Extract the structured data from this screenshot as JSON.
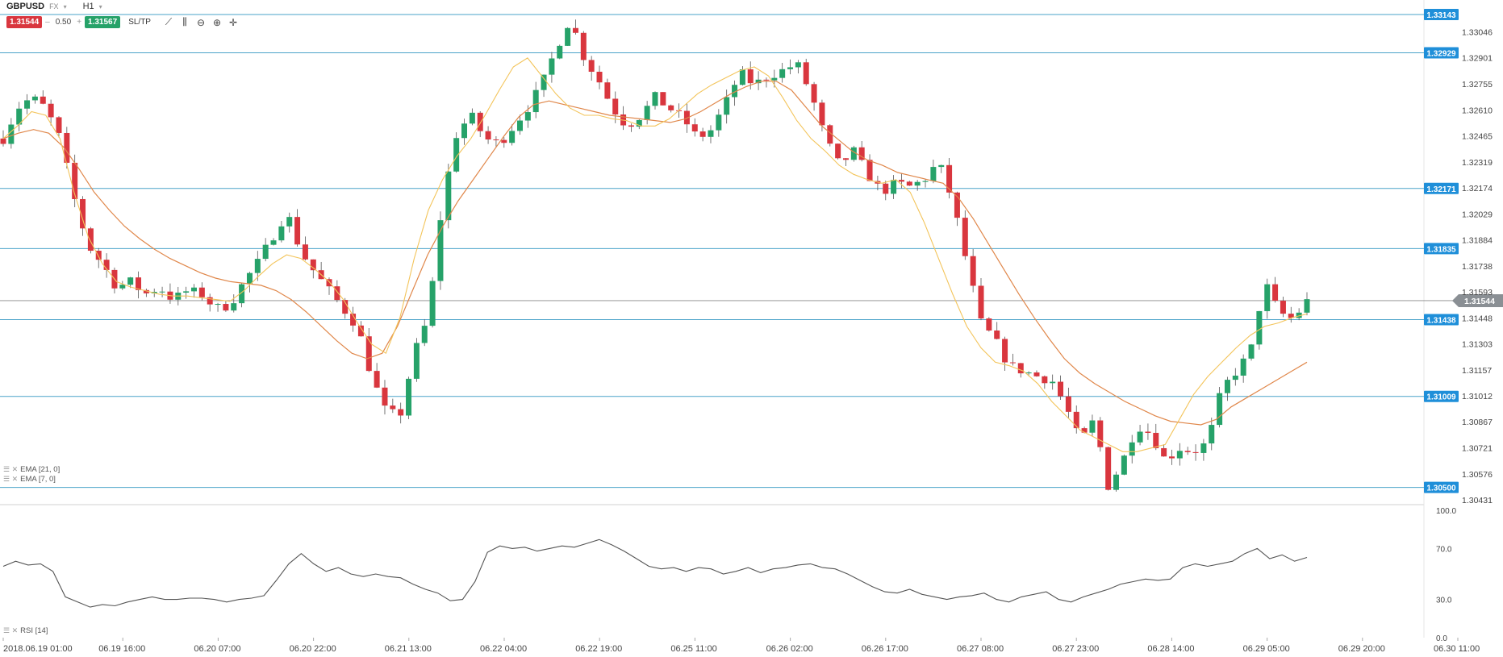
{
  "toolbar": {
    "symbol": "GBPUSD",
    "market": "FX",
    "timeframe": "H1",
    "sell_price": "1.31544",
    "buy_price": "1.31567",
    "lot_minus": "–",
    "lot_size": "0.50",
    "lot_plus": "+",
    "sltp_label": "SL/TP",
    "tools": [
      "line-tool-icon",
      "bars-tool-icon",
      "zoom-out-icon",
      "zoom-in-icon",
      "crosshair-icon"
    ]
  },
  "indicators": {
    "ema21_label": "EMA [21, 0]",
    "ema7_label": "EMA [7, 0]",
    "rsi_label": "RSI [14]"
  },
  "colors": {
    "bull": "#26a269",
    "bear": "#d9363e",
    "ema21": "#e0874a",
    "ema7": "#f3c45a",
    "hline": "#4aa3c9",
    "hline_label": "#1f8fd9",
    "rsi": "#555555"
  },
  "chart_data": [
    {
      "type": "candlestick",
      "instrument": "GBPUSD",
      "timeframe": "H1",
      "y_axis": {
        "side": "right",
        "ylim": [
          1.30431,
          1.33143
        ],
        "ticks": [
          "1.33046",
          "1.32901",
          "1.32755",
          "1.32610",
          "1.32465",
          "1.32319",
          "1.32174",
          "1.32029",
          "1.31884",
          "1.31738",
          "1.31593",
          "1.31448",
          "1.31303",
          "1.31157",
          "1.31012",
          "1.30867",
          "1.30721",
          "1.30576",
          "1.30431"
        ]
      },
      "x_axis": {
        "labels": [
          "2018.06.19 01:00",
          "06.19 16:00",
          "06.20 07:00",
          "06.20 22:00",
          "06.21 13:00",
          "06.22 04:00",
          "06.22 19:00",
          "06.25 11:00",
          "06.26 02:00",
          "06.26 17:00",
          "06.27 08:00",
          "06.27 23:00",
          "06.28 14:00",
          "06.29 05:00",
          "06.29 20:00",
          "06.30 11:00"
        ]
      },
      "horizontal_lines": [
        {
          "price": "1.33143"
        },
        {
          "price": "1.32929"
        },
        {
          "price": "1.32171"
        },
        {
          "price": "1.31835"
        },
        {
          "price": "1.31438"
        },
        {
          "price": "1.31009"
        },
        {
          "price": "1.30500"
        }
      ],
      "current_price": "1.31544",
      "close_path": [
        1.3245,
        1.3262,
        1.3268,
        1.3262,
        1.3245,
        1.3212,
        1.3185,
        1.3175,
        1.3162,
        1.3165,
        1.3158,
        1.3162,
        1.3155,
        1.316,
        1.3158,
        1.315,
        1.3152,
        1.3165,
        1.3176,
        1.319,
        1.3204,
        1.3182,
        1.317,
        1.316,
        1.315,
        1.314,
        1.3112,
        1.3092,
        1.309,
        1.3125,
        1.3145,
        1.321,
        1.3248,
        1.3258,
        1.3245,
        1.3242,
        1.3252,
        1.3262,
        1.3275,
        1.3295,
        1.3312,
        1.329,
        1.3278,
        1.3262,
        1.3252,
        1.3258,
        1.3268,
        1.3262,
        1.3256,
        1.3245,
        1.325,
        1.3265,
        1.3282,
        1.3275,
        1.328,
        1.3283,
        1.3287,
        1.327,
        1.3245,
        1.323,
        1.3238,
        1.3225,
        1.3215,
        1.322,
        1.3218,
        1.3222,
        1.3232,
        1.321,
        1.3175,
        1.3142,
        1.3132,
        1.3118,
        1.3115,
        1.3112,
        1.311,
        1.3095,
        1.3075,
        1.3088,
        1.305,
        1.3065,
        1.3085,
        1.308,
        1.3065,
        1.3072,
        1.307,
        1.3075,
        1.3105,
        1.3115,
        1.3125,
        1.3165,
        1.3148,
        1.3144,
        1.3154
      ],
      "ema7": [
        1.3245,
        1.3252,
        1.326,
        1.3258,
        1.3245,
        1.3215,
        1.319,
        1.3175,
        1.3165,
        1.3162,
        1.316,
        1.3158,
        1.3157,
        1.3157,
        1.3156,
        1.3155,
        1.3154,
        1.316,
        1.3168,
        1.3175,
        1.318,
        1.3178,
        1.3172,
        1.3165,
        1.3155,
        1.3142,
        1.313,
        1.3125,
        1.3145,
        1.3178,
        1.3205,
        1.3222,
        1.3235,
        1.3245,
        1.3258,
        1.3272,
        1.3285,
        1.329,
        1.328,
        1.327,
        1.3262,
        1.3258,
        1.3258,
        1.3256,
        1.3255,
        1.3252,
        1.3252,
        1.3256,
        1.3263,
        1.327,
        1.3275,
        1.3279,
        1.3283,
        1.3285,
        1.328,
        1.3268,
        1.3255,
        1.3245,
        1.3238,
        1.323,
        1.3225,
        1.3222,
        1.322,
        1.3222,
        1.3215,
        1.3198,
        1.3178,
        1.3158,
        1.314,
        1.3128,
        1.312,
        1.3118,
        1.3115,
        1.3108,
        1.3098,
        1.309,
        1.3082,
        1.3078,
        1.3074,
        1.307,
        1.307,
        1.3072,
        1.3074,
        1.3088,
        1.3102,
        1.3112,
        1.312,
        1.3128,
        1.3135,
        1.314,
        1.3142,
        1.3145,
        1.3147
      ],
      "ema21": [
        1.3245,
        1.3248,
        1.325,
        1.3248,
        1.324,
        1.3228,
        1.3215,
        1.3205,
        1.3196,
        1.3189,
        1.3183,
        1.3178,
        1.3174,
        1.317,
        1.3167,
        1.3165,
        1.3164,
        1.3163,
        1.316,
        1.3155,
        1.3148,
        1.314,
        1.3132,
        1.3125,
        1.3122,
        1.3125,
        1.314,
        1.316,
        1.318,
        1.3196,
        1.321,
        1.3222,
        1.3234,
        1.3246,
        1.3257,
        1.3264,
        1.3266,
        1.3264,
        1.3262,
        1.326,
        1.3258,
        1.3257,
        1.3256,
        1.3255,
        1.3254,
        1.3256,
        1.326,
        1.3265,
        1.327,
        1.3274,
        1.3277,
        1.3277,
        1.3272,
        1.3262,
        1.3252,
        1.3245,
        1.3238,
        1.3233,
        1.323,
        1.3226,
        1.3224,
        1.3222,
        1.322,
        1.3212,
        1.32,
        1.3186,
        1.3172,
        1.3158,
        1.3145,
        1.3133,
        1.3122,
        1.3114,
        1.3108,
        1.3103,
        1.3098,
        1.3094,
        1.309,
        1.3087,
        1.3086,
        1.3085,
        1.3088,
        1.3095,
        1.31,
        1.3105,
        1.311,
        1.3115,
        1.312
      ]
    },
    {
      "type": "line",
      "indicator": "RSI [14]",
      "ylim": [
        0.0,
        100.0
      ],
      "y_ticks": [
        "100.0",
        "70.0",
        "30.0",
        "0.0"
      ],
      "values": [
        56,
        60,
        57,
        58,
        52,
        32,
        28,
        24,
        26,
        25,
        28,
        30,
        32,
        30,
        30,
        31,
        31,
        30,
        28,
        30,
        31,
        33,
        45,
        58,
        66,
        58,
        52,
        55,
        50,
        48,
        50,
        48,
        47,
        42,
        38,
        35,
        29,
        30,
        44,
        67,
        72,
        70,
        71,
        68,
        70,
        72,
        71,
        74,
        77,
        73,
        68,
        62,
        56,
        54,
        55,
        52,
        55,
        54,
        50,
        52,
        55,
        51,
        54,
        55,
        57,
        58,
        55,
        54,
        50,
        45,
        40,
        36,
        35,
        38,
        34,
        32,
        30,
        32,
        33,
        35,
        30,
        28,
        32,
        34,
        36,
        30,
        28,
        32,
        35,
        38,
        42,
        44,
        46,
        45,
        46,
        55,
        58,
        56,
        58,
        60,
        66,
        70,
        62,
        65,
        60,
        63
      ]
    }
  ]
}
